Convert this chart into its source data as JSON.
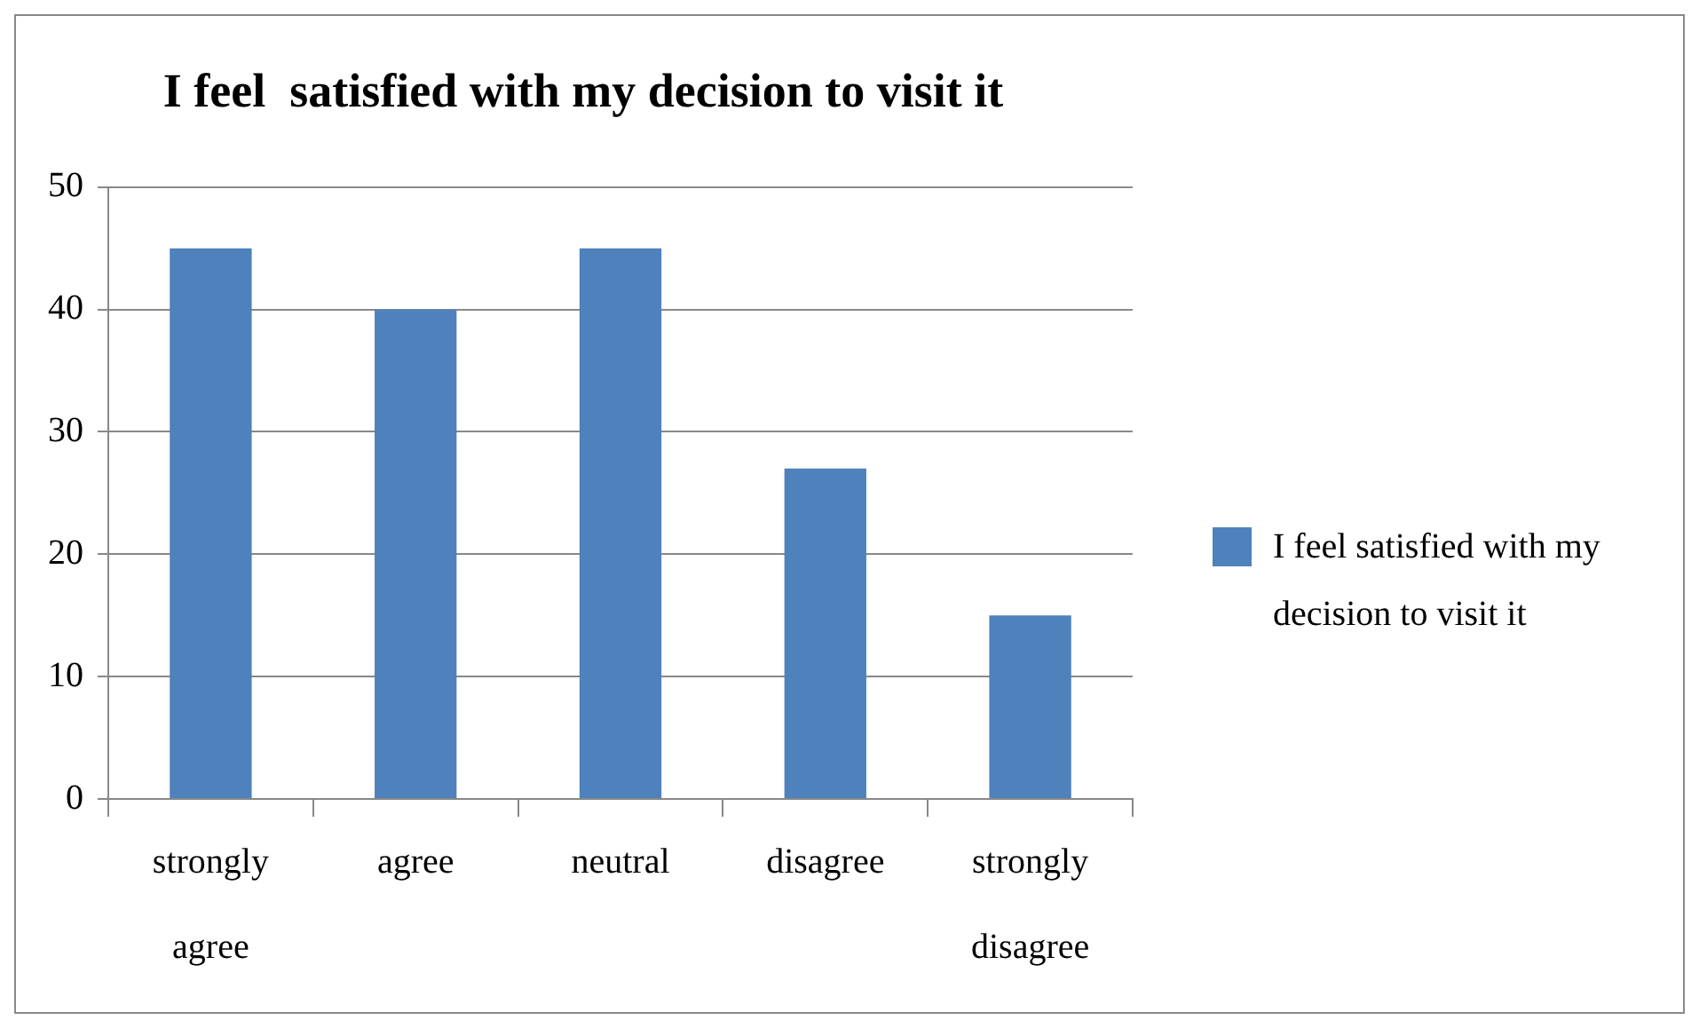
{
  "chart_data": {
    "type": "bar",
    "title": "I feel  satisfied with my decision to visit it",
    "categories": [
      "strongly agree",
      "agree",
      "neutral",
      "disagree",
      "strongly disagree"
    ],
    "series": [
      {
        "name": "I feel  satisfied with my decision to visit it",
        "color": "#4f81bd",
        "values": [
          45,
          40,
          45,
          27,
          15
        ]
      }
    ],
    "ylim": [
      0,
      50
    ],
    "yticks": [
      0,
      10,
      20,
      30,
      40,
      50
    ],
    "grid": "y",
    "legend": "right"
  }
}
